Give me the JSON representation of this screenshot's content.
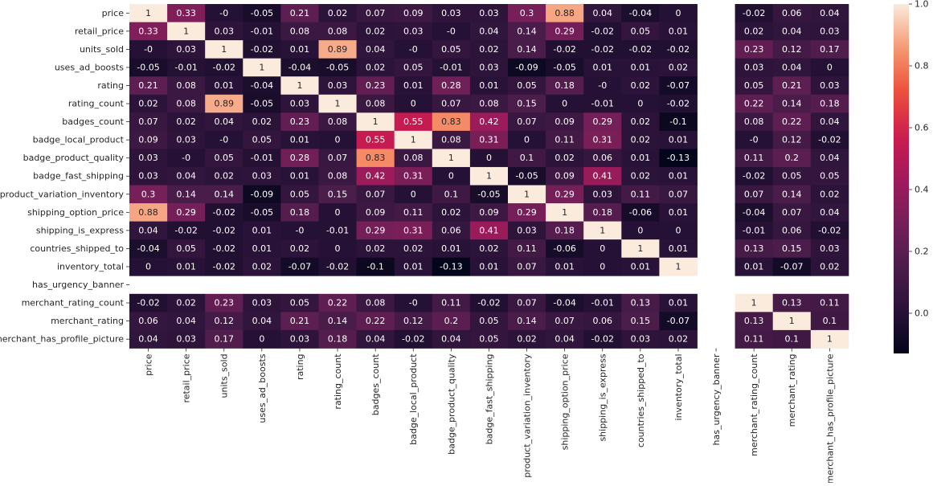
{
  "chart_data": {
    "type": "heatmap",
    "title": "",
    "xlabel": "",
    "ylabel": "",
    "rows": [
      "price",
      "retail_price",
      "units_sold",
      "uses_ad_boosts",
      "rating",
      "rating_count",
      "badges_count",
      "badge_local_product",
      "badge_product_quality",
      "badge_fast_shipping",
      "product_variation_inventory",
      "shipping_option_price",
      "shipping_is_express",
      "countries_shipped_to",
      "inventory_total",
      "has_urgency_banner",
      "merchant_rating_count",
      "merchant_rating",
      "merchant_has_profile_picture"
    ],
    "columns": [
      "price",
      "retail_price",
      "units_sold",
      "uses_ad_boosts",
      "rating",
      "rating_count",
      "badges_count",
      "badge_local_product",
      "badge_product_quality",
      "badge_fast_shipping",
      "product_variation_inventory",
      "shipping_option_price",
      "shipping_is_express",
      "countries_shipped_to",
      "inventory_total",
      "has_urgency_banner",
      "merchant_rating_count",
      "merchant_rating",
      "merchant_has_profile_picture"
    ],
    "values": [
      [
        1,
        0.33,
        0,
        -0.05,
        0.21,
        0.02,
        0.07,
        0.09,
        0.03,
        0.03,
        0.3,
        0.88,
        0.04,
        -0.04,
        0,
        null,
        -0.02,
        0.06,
        0.04
      ],
      [
        0.33,
        1,
        0.03,
        -0.01,
        0.08,
        0.08,
        0.02,
        0.03,
        0,
        0.04,
        0.14,
        0.29,
        -0.02,
        0.05,
        0.01,
        null,
        0.02,
        0.04,
        0.03
      ],
      [
        0,
        0.03,
        1,
        -0.02,
        0.01,
        0.89,
        0.04,
        0,
        0.05,
        0.02,
        0.14,
        -0.02,
        -0.02,
        -0.02,
        -0.02,
        null,
        0.23,
        0.12,
        0.17
      ],
      [
        -0.05,
        -0.01,
        -0.02,
        1,
        -0.04,
        -0.05,
        0.02,
        0.05,
        -0.01,
        0.03,
        -0.09,
        -0.05,
        0.01,
        0.01,
        0.02,
        null,
        0.03,
        0.04,
        0
      ],
      [
        0.21,
        0.08,
        0.01,
        -0.04,
        1,
        0.03,
        0.23,
        0.01,
        0.28,
        0.01,
        0.05,
        0.18,
        0,
        0.02,
        -0.07,
        null,
        0.05,
        0.21,
        0.03
      ],
      [
        0.02,
        0.08,
        0.89,
        -0.05,
        0.03,
        1,
        0.08,
        0,
        0.07,
        0.08,
        0.15,
        0,
        -0.01,
        0,
        -0.02,
        null,
        0.22,
        0.14,
        0.18
      ],
      [
        0.07,
        0.02,
        0.04,
        0.02,
        0.23,
        0.08,
        1,
        0.55,
        0.83,
        0.42,
        0.07,
        0.09,
        0.29,
        0.02,
        -0.1,
        null,
        0.08,
        0.22,
        0.04
      ],
      [
        0.09,
        0.03,
        0,
        0.05,
        0.01,
        0,
        0.55,
        1,
        0.08,
        0.31,
        0,
        0.11,
        0.31,
        0.02,
        0.01,
        null,
        0,
        0.12,
        -0.02
      ],
      [
        0.03,
        0,
        0.05,
        -0.01,
        0.28,
        0.07,
        0.83,
        0.08,
        1,
        0,
        0.1,
        0.02,
        0.06,
        0.01,
        -0.13,
        null,
        0.11,
        0.2,
        0.04
      ],
      [
        0.03,
        0.04,
        0.02,
        0.03,
        0.01,
        0.08,
        0.42,
        0.31,
        0,
        1,
        -0.05,
        0.09,
        0.41,
        0.02,
        0.01,
        null,
        -0.02,
        0.05,
        0.05
      ],
      [
        0.3,
        0.14,
        0.14,
        -0.09,
        0.05,
        0.15,
        0.07,
        0,
        0.1,
        -0.05,
        1,
        0.29,
        0.03,
        0.11,
        0.07,
        null,
        0.07,
        0.14,
        0.02
      ],
      [
        0.88,
        0.29,
        -0.02,
        -0.05,
        0.18,
        0,
        0.09,
        0.11,
        0.02,
        0.09,
        0.29,
        1,
        0.18,
        -0.06,
        0.01,
        null,
        -0.04,
        0.07,
        0.04
      ],
      [
        0.04,
        -0.02,
        -0.02,
        0.01,
        0,
        -0.01,
        0.29,
        0.31,
        0.06,
        0.41,
        0.03,
        0.18,
        1,
        0,
        0,
        null,
        -0.01,
        0.06,
        -0.02
      ],
      [
        -0.04,
        0.05,
        -0.02,
        0.01,
        0.02,
        0,
        0.02,
        0.02,
        0.01,
        0.02,
        0.11,
        -0.06,
        0,
        1,
        0.01,
        null,
        0.13,
        0.15,
        0.03
      ],
      [
        0,
        0.01,
        -0.02,
        0.02,
        -0.07,
        -0.02,
        -0.1,
        0.01,
        -0.13,
        0.01,
        0.07,
        0.01,
        0,
        0.01,
        1,
        null,
        0.01,
        -0.07,
        0.02
      ],
      [
        null,
        null,
        null,
        null,
        null,
        null,
        null,
        null,
        null,
        null,
        null,
        null,
        null,
        null,
        null,
        null,
        null,
        null,
        null
      ],
      [
        -0.02,
        0.02,
        0.23,
        0.03,
        0.05,
        0.22,
        0.08,
        0,
        0.11,
        -0.02,
        0.07,
        -0.04,
        -0.01,
        0.13,
        0.01,
        null,
        1,
        0.13,
        0.11
      ],
      [
        0.06,
        0.04,
        0.12,
        0.04,
        0.21,
        0.14,
        0.22,
        0.12,
        0.2,
        0.05,
        0.14,
        0.07,
        0.06,
        0.15,
        -0.07,
        null,
        0.13,
        1,
        0.1
      ],
      [
        0.04,
        0.03,
        0.17,
        0,
        0.03,
        0.18,
        0.04,
        -0.02,
        0.04,
        0.05,
        0.02,
        0.04,
        -0.02,
        0.03,
        0.02,
        null,
        0.11,
        0.1,
        1
      ]
    ],
    "colorbar": {
      "min": -0.13,
      "max": 1.0,
      "ticks": [
        0.0,
        0.2,
        0.4,
        0.6,
        0.8,
        1.0
      ],
      "tick_labels": [
        "0.0",
        "0.2",
        "0.4",
        "0.6",
        "0.8",
        "1.0"
      ]
    },
    "colormap": "rocket",
    "colors": {
      "annotation_light": "#ffffff",
      "annotation_dark": "#262626",
      "axis_text": "#262626"
    }
  }
}
